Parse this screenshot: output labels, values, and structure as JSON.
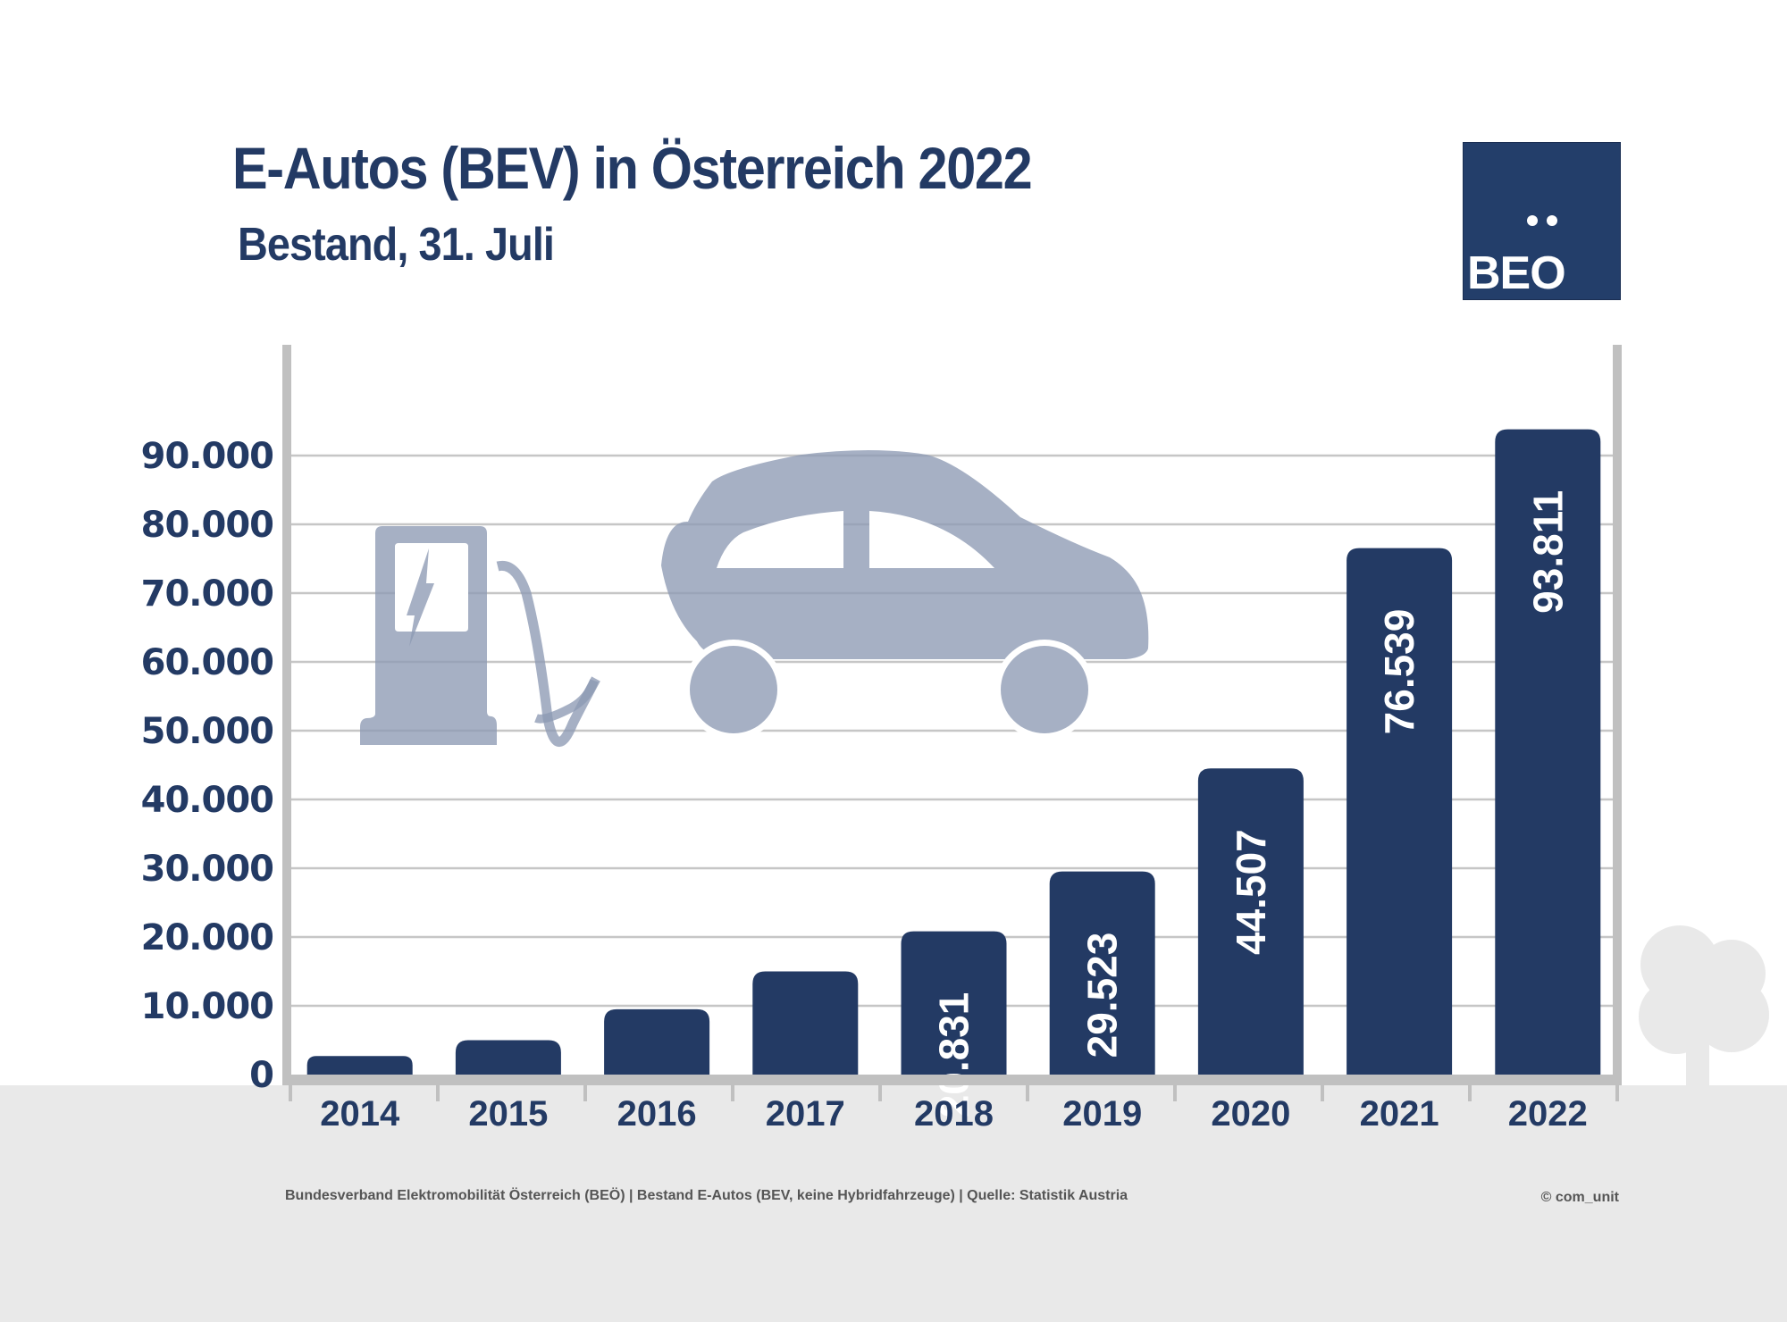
{
  "header": {
    "title": "E-Autos (BEV) in Österreich 2022",
    "subtitle": "Bestand, 31. Juli"
  },
  "logo": {
    "text": "BEO",
    "umlaut_dots": 2
  },
  "footer": {
    "source_note": "Bundesverband Elektromobilität Österreich (BEÖ) | Bestand E-Autos (BEV, keine Hybridfahrzeuge) | Quelle: Statistik Austria",
    "copyright": "© com_unit"
  },
  "illustrations": [
    "charging-station-icon",
    "electric-car-icon",
    "tree-icon"
  ],
  "colors": {
    "bar": "#233a64",
    "axis": "#c0c0c0",
    "grid": "#c6c6c6",
    "text": "#233a64",
    "bar_label": "#ffffff",
    "icon": "#8d9ab3",
    "ground": "#e9e9e9"
  },
  "chart_data": {
    "type": "bar",
    "title": "E-Autos (BEV) in Österreich 2022",
    "subtitle": "Bestand, 31. Juli",
    "xlabel": "",
    "ylabel": "",
    "categories": [
      "2014",
      "2015",
      "2016",
      "2017",
      "2018",
      "2019",
      "2020",
      "2021",
      "2022"
    ],
    "values": [
      2700,
      5000,
      9500,
      15000,
      20831,
      29523,
      44507,
      76539,
      93811
    ],
    "data_labels": [
      "",
      "",
      "",
      "",
      "20.831",
      "29.523",
      "44.507",
      "76.539",
      "93.811"
    ],
    "ylim": [
      0,
      93811
    ],
    "yticks": [
      0,
      10000,
      20000,
      30000,
      40000,
      50000,
      60000,
      70000,
      80000,
      90000
    ],
    "ytick_labels": [
      "0",
      "10.000",
      "20.000",
      "30.000",
      "40.000",
      "50.000",
      "60.000",
      "70.000",
      "80.000",
      "90.000"
    ],
    "grid": true,
    "legend": "none"
  }
}
